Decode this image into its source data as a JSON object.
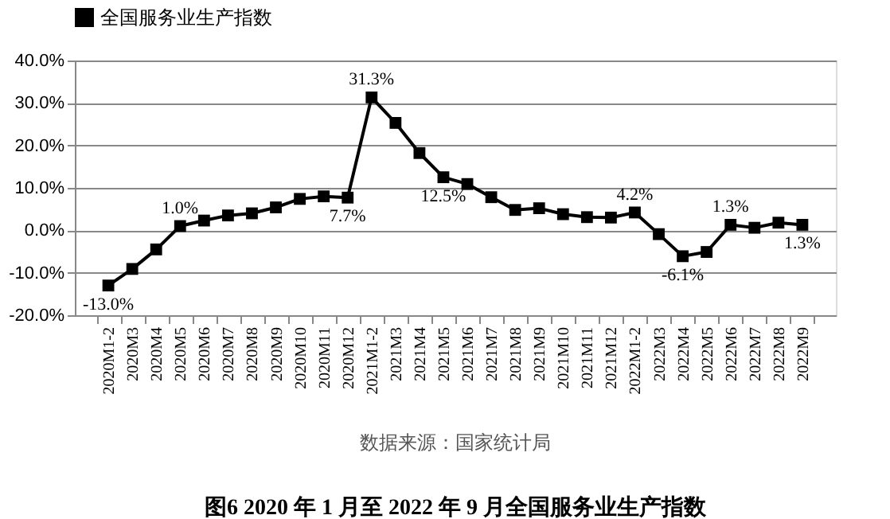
{
  "chart_data": {
    "type": "line",
    "title": "图6   2020 年 1 月至 2022 年 9 月全国服务业生产指数",
    "annotations": [
      "数据来源：国家统计局"
    ],
    "categories": [
      "2020M1-2",
      "2020M3",
      "2020M4",
      "2020M5",
      "2020M6",
      "2020M7",
      "2020M8",
      "2020M9",
      "2020M10",
      "2020M11",
      "2020M12",
      "2021M1-2",
      "2021M3",
      "2021M4",
      "2021M5",
      "2021M6",
      "2021M7",
      "2021M8",
      "2021M9",
      "2021M10",
      "2021M11",
      "2021M12",
      "2022M1-2",
      "2022M3",
      "2022M4",
      "2022M5",
      "2022M6",
      "2022M7",
      "2022M8",
      "2022M9"
    ],
    "series": [
      {
        "name": "全国服务业生产指数",
        "color": "#000000",
        "values": [
          -13.0,
          -9.1,
          -4.5,
          1.0,
          2.3,
          3.5,
          4.0,
          5.4,
          7.4,
          8.0,
          7.7,
          31.3,
          25.3,
          18.2,
          12.5,
          10.9,
          7.8,
          4.8,
          5.2,
          3.8,
          3.1,
          3.0,
          4.2,
          -0.9,
          -6.1,
          -5.1,
          1.3,
          0.6,
          1.8,
          1.3
        ],
        "value_labels": [
          "-13.0%",
          null,
          null,
          "1.0%",
          null,
          null,
          null,
          null,
          null,
          null,
          "7.7%",
          "31.3%",
          null,
          null,
          "12.5%",
          null,
          null,
          null,
          null,
          null,
          null,
          null,
          "4.2%",
          null,
          "-6.1%",
          null,
          "1.3%",
          null,
          null,
          "1.3%"
        ]
      }
    ],
    "ylim": [
      -20,
      40
    ],
    "yticks": [
      {
        "value": -20,
        "label": "-20.0%"
      },
      {
        "value": -10,
        "label": "-10.0%"
      },
      {
        "value": 0,
        "label": "0.0%"
      },
      {
        "value": 10,
        "label": "10.0%"
      },
      {
        "value": 20,
        "label": "20.0%"
      },
      {
        "value": 30,
        "label": "30.0%"
      },
      {
        "value": 40,
        "label": "40.0%"
      }
    ],
    "grid": "y",
    "legend": "top",
    "marker": "square",
    "line_style": "solid"
  }
}
